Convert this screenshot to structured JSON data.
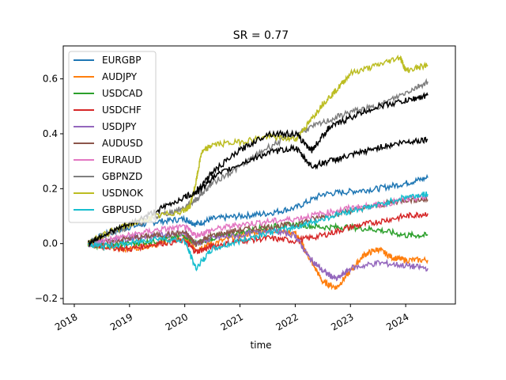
{
  "chart_data": {
    "type": "line",
    "title": "SR = 0.77",
    "xlabel": "time",
    "ylabel": "",
    "xlim": [
      2017.8,
      2024.9
    ],
    "ylim": [
      -0.22,
      0.72
    ],
    "xticks": [
      "2018",
      "2019",
      "2020",
      "2021",
      "2022",
      "2023",
      "2024"
    ],
    "xtick_values": [
      2018,
      2019,
      2020,
      2021,
      2022,
      2023,
      2024
    ],
    "yticks": [
      "−0.2",
      "0.0",
      "0.2",
      "0.4",
      "0.6"
    ],
    "ytick_values": [
      -0.2,
      0.0,
      0.2,
      0.4,
      0.6
    ],
    "legend_position": "top-left",
    "grid": false,
    "series": [
      {
        "name": "EURGBP",
        "color": "#1f77b4",
        "x": [
          2018.25,
          2018.5,
          2019.0,
          2019.5,
          2020.0,
          2020.2,
          2020.5,
          2021.0,
          2021.5,
          2022.0,
          2022.5,
          2023.0,
          2023.5,
          2024.0,
          2024.4
        ],
        "y": [
          0.0,
          0.03,
          0.06,
          0.08,
          0.09,
          0.07,
          0.09,
          0.1,
          0.11,
          0.13,
          0.18,
          0.19,
          0.2,
          0.22,
          0.24
        ]
      },
      {
        "name": "AUDJPY",
        "color": "#ff7f0e",
        "x": [
          2018.25,
          2018.5,
          2019.0,
          2019.5,
          2020.0,
          2020.2,
          2020.5,
          2021.0,
          2021.5,
          2022.0,
          2022.25,
          2022.5,
          2022.75,
          2023.0,
          2023.25,
          2023.5,
          2023.75,
          2024.0,
          2024.4
        ],
        "y": [
          0.0,
          -0.01,
          -0.02,
          0.0,
          0.02,
          -0.02,
          0.0,
          0.03,
          0.05,
          0.04,
          -0.05,
          -0.14,
          -0.16,
          -0.1,
          -0.04,
          -0.02,
          -0.05,
          -0.06,
          -0.06
        ]
      },
      {
        "name": "USDCAD",
        "color": "#2ca02c",
        "x": [
          2018.25,
          2018.5,
          2019.0,
          2019.5,
          2020.0,
          2020.2,
          2020.5,
          2021.0,
          2021.5,
          2022.0,
          2022.5,
          2023.0,
          2023.5,
          2024.0,
          2024.4
        ],
        "y": [
          0.0,
          -0.01,
          0.0,
          0.01,
          0.03,
          0.0,
          0.02,
          0.04,
          0.06,
          0.07,
          0.06,
          0.06,
          0.05,
          0.03,
          0.03
        ]
      },
      {
        "name": "USDCHF",
        "color": "#d62728",
        "x": [
          2018.25,
          2018.5,
          2019.0,
          2019.5,
          2020.0,
          2020.2,
          2020.5,
          2021.0,
          2021.5,
          2022.0,
          2022.5,
          2023.0,
          2023.5,
          2024.0,
          2024.4
        ],
        "y": [
          0.0,
          -0.01,
          -0.02,
          0.0,
          0.01,
          -0.03,
          -0.01,
          0.01,
          0.02,
          0.01,
          0.03,
          0.06,
          0.08,
          0.1,
          0.11
        ]
      },
      {
        "name": "USDJPY",
        "color": "#9467bd",
        "x": [
          2018.25,
          2018.5,
          2019.0,
          2019.5,
          2020.0,
          2020.2,
          2020.5,
          2021.0,
          2021.5,
          2022.0,
          2022.25,
          2022.5,
          2022.75,
          2023.0,
          2023.5,
          2024.0,
          2024.4
        ],
        "y": [
          0.0,
          0.01,
          0.02,
          0.03,
          0.04,
          0.0,
          0.02,
          0.03,
          0.05,
          0.03,
          -0.05,
          -0.1,
          -0.13,
          -0.09,
          -0.07,
          -0.08,
          -0.09
        ]
      },
      {
        "name": "AUDUSD",
        "color": "#8c564b",
        "x": [
          2018.25,
          2018.5,
          2019.0,
          2019.5,
          2020.0,
          2020.2,
          2020.5,
          2021.0,
          2021.5,
          2022.0,
          2022.5,
          2023.0,
          2023.5,
          2024.0,
          2024.4
        ],
        "y": [
          0.0,
          0.0,
          0.02,
          0.03,
          0.04,
          0.0,
          0.03,
          0.05,
          0.06,
          0.07,
          0.1,
          0.12,
          0.14,
          0.16,
          0.16
        ]
      },
      {
        "name": "EURAUD",
        "color": "#e377c2",
        "x": [
          2018.25,
          2018.5,
          2019.0,
          2019.5,
          2020.0,
          2020.2,
          2020.5,
          2021.0,
          2021.5,
          2022.0,
          2022.5,
          2023.0,
          2023.5,
          2024.0,
          2024.4
        ],
        "y": [
          0.0,
          0.01,
          0.03,
          0.05,
          0.06,
          0.03,
          0.05,
          0.07,
          0.08,
          0.09,
          0.11,
          0.13,
          0.14,
          0.16,
          0.17
        ]
      },
      {
        "name": "GBPNZD",
        "color": "#7f7f7f",
        "x": [
          2018.25,
          2018.5,
          2019.0,
          2019.5,
          2020.0,
          2020.2,
          2020.5,
          2021.0,
          2021.5,
          2022.0,
          2022.5,
          2023.0,
          2023.5,
          2024.0,
          2024.4
        ],
        "y": [
          0.0,
          0.03,
          0.06,
          0.1,
          0.13,
          0.16,
          0.22,
          0.28,
          0.35,
          0.4,
          0.44,
          0.48,
          0.5,
          0.55,
          0.59
        ]
      },
      {
        "name": "USDNOK",
        "color": "#bcbd22",
        "x": [
          2018.25,
          2018.5,
          2019.0,
          2019.5,
          2020.0,
          2020.1,
          2020.2,
          2020.3,
          2020.5,
          2021.0,
          2021.5,
          2022.0,
          2022.25,
          2022.5,
          2022.75,
          2023.0,
          2023.5,
          2023.9,
          2024.0,
          2024.4
        ],
        "y": [
          0.0,
          0.03,
          0.07,
          0.1,
          0.12,
          0.14,
          0.22,
          0.33,
          0.36,
          0.37,
          0.39,
          0.38,
          0.44,
          0.51,
          0.56,
          0.62,
          0.65,
          0.68,
          0.63,
          0.65
        ]
      },
      {
        "name": "GBPUSD",
        "color": "#17becf",
        "x": [
          2018.25,
          2018.5,
          2019.0,
          2019.5,
          2020.0,
          2020.2,
          2020.5,
          2021.0,
          2021.5,
          2022.0,
          2022.5,
          2023.0,
          2023.5,
          2024.0,
          2024.4
        ],
        "y": [
          0.0,
          -0.01,
          0.0,
          0.02,
          0.01,
          -0.09,
          -0.02,
          0.01,
          0.04,
          0.06,
          0.09,
          0.12,
          0.14,
          0.17,
          0.18
        ]
      },
      {
        "name": "",
        "color": "#000000",
        "x": [
          2018.25,
          2018.5,
          2019.0,
          2019.5,
          2020.0,
          2020.25,
          2020.5,
          2021.0,
          2021.5,
          2022.0,
          2022.3,
          2022.6,
          2023.0,
          2023.5,
          2024.0,
          2024.4
        ],
        "y": [
          0.0,
          0.03,
          0.07,
          0.12,
          0.17,
          0.19,
          0.24,
          0.29,
          0.33,
          0.35,
          0.28,
          0.3,
          0.32,
          0.35,
          0.37,
          0.38
        ]
      },
      {
        "name": "",
        "color": "#000000",
        "x": [
          2020.2,
          2020.5,
          2021.0,
          2021.5,
          2022.0,
          2022.3,
          2022.6,
          2023.0,
          2023.5,
          2024.0,
          2024.4
        ],
        "y": [
          0.19,
          0.26,
          0.34,
          0.4,
          0.4,
          0.34,
          0.42,
          0.46,
          0.5,
          0.52,
          0.54
        ]
      }
    ]
  }
}
